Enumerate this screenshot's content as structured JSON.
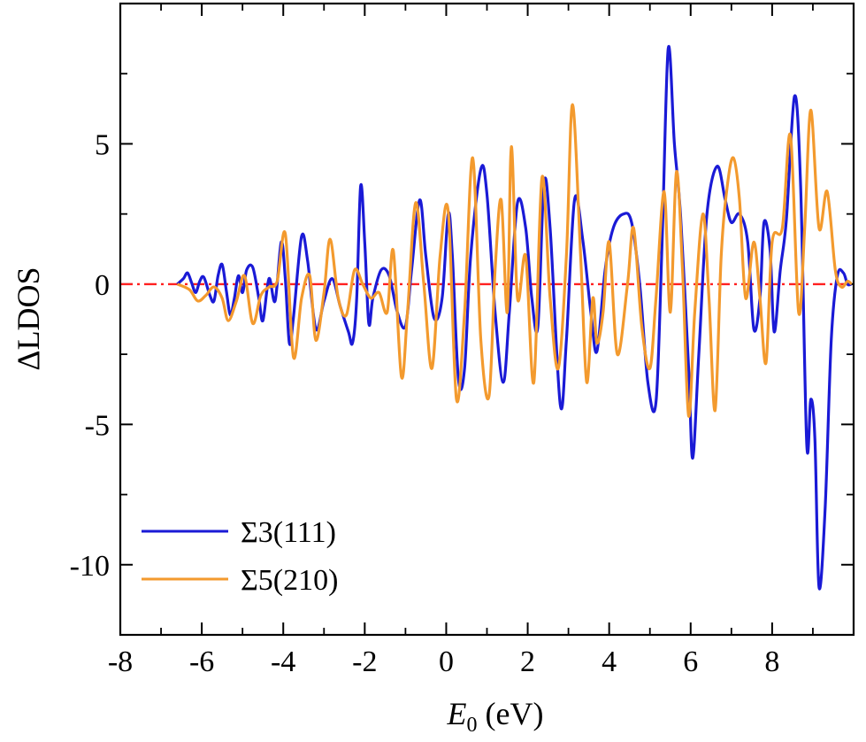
{
  "chart_data": {
    "type": "line",
    "title": "",
    "xlabel": {
      "main": "E",
      "sub": "0",
      "rest": " (eV)"
    },
    "ylabel": "ΔLDOS",
    "xlim": [
      -8,
      10
    ],
    "ylim": [
      -12.5,
      10
    ],
    "x_ticks": [
      -8,
      -6,
      -4,
      -2,
      0,
      2,
      4,
      6,
      8
    ],
    "x_tick_labels": [
      "-8",
      "-6",
      "-4",
      "-2",
      "0",
      "2",
      "4",
      "6",
      "8"
    ],
    "y_ticks": [
      -10,
      -5,
      0,
      5
    ],
    "y_tick_labels": [
      "-10",
      "-5",
      "0",
      "5"
    ],
    "x_minor_step": 1,
    "y_minor_step": 2.5,
    "legend_position": "bottom-left",
    "zero_line": {
      "y": 0,
      "color": "#ff2020",
      "style": "dash-dot"
    },
    "series": [
      {
        "name": "Σ3(111)",
        "color": "#1a1ad6",
        "points": [
          [
            -6.6,
            0
          ],
          [
            -6.45,
            0.2
          ],
          [
            -6.35,
            0.4
          ],
          [
            -6.25,
            0.05
          ],
          [
            -6.15,
            -0.3
          ],
          [
            -6.05,
            0.1
          ],
          [
            -5.95,
            0.25
          ],
          [
            -5.8,
            -0.4
          ],
          [
            -5.7,
            -0.6
          ],
          [
            -5.6,
            0.3
          ],
          [
            -5.5,
            0.7
          ],
          [
            -5.4,
            -0.2
          ],
          [
            -5.3,
            -1.1
          ],
          [
            -5.2,
            -0.5
          ],
          [
            -5.1,
            0.3
          ],
          [
            -5.0,
            -0.3
          ],
          [
            -4.9,
            0.5
          ],
          [
            -4.75,
            0.6
          ],
          [
            -4.6,
            -0.5
          ],
          [
            -4.5,
            -1.3
          ],
          [
            -4.35,
            0.2
          ],
          [
            -4.2,
            -0.6
          ],
          [
            -4.05,
            1.5
          ],
          [
            -3.95,
            0.2
          ],
          [
            -3.85,
            -2.1
          ],
          [
            -3.75,
            -1.2
          ],
          [
            -3.55,
            1.7
          ],
          [
            -3.4,
            0.8
          ],
          [
            -3.2,
            -1.6
          ],
          [
            -3.0,
            -0.6
          ],
          [
            -2.8,
            0.2
          ],
          [
            -2.6,
            -0.8
          ],
          [
            -2.4,
            -1.7
          ],
          [
            -2.3,
            -2.1
          ],
          [
            -2.2,
            -0.6
          ],
          [
            -2.1,
            3.5
          ],
          [
            -2.0,
            1.5
          ],
          [
            -1.9,
            -1.4
          ],
          [
            -1.8,
            -0.5
          ],
          [
            -1.6,
            0.5
          ],
          [
            -1.4,
            0.3
          ],
          [
            -1.2,
            -1.0
          ],
          [
            -1.0,
            -1.5
          ],
          [
            -0.85,
            0.5
          ],
          [
            -0.65,
            3.0
          ],
          [
            -0.5,
            1.0
          ],
          [
            -0.3,
            -1.2
          ],
          [
            -0.1,
            -0.5
          ],
          [
            0.05,
            2.5
          ],
          [
            0.15,
            1.0
          ],
          [
            0.3,
            -3.4
          ],
          [
            0.45,
            -3.0
          ],
          [
            0.6,
            1.0
          ],
          [
            0.85,
            4.1
          ],
          [
            1.0,
            3.2
          ],
          [
            1.2,
            -1.0
          ],
          [
            1.4,
            -3.5
          ],
          [
            1.55,
            -1.0
          ],
          [
            1.75,
            2.9
          ],
          [
            1.95,
            2.0
          ],
          [
            2.1,
            -0.5
          ],
          [
            2.25,
            -1.5
          ],
          [
            2.4,
            3.6
          ],
          [
            2.55,
            2.0
          ],
          [
            2.8,
            -4.3
          ],
          [
            2.95,
            -2.0
          ],
          [
            3.15,
            3.0
          ],
          [
            3.35,
            1.6
          ],
          [
            3.55,
            -1.0
          ],
          [
            3.7,
            -2.4
          ],
          [
            3.9,
            0.5
          ],
          [
            4.1,
            2.0
          ],
          [
            4.35,
            2.5
          ],
          [
            4.55,
            2.2
          ],
          [
            4.75,
            0.0
          ],
          [
            4.95,
            -3.5
          ],
          [
            5.15,
            -4.2
          ],
          [
            5.3,
            1.5
          ],
          [
            5.45,
            8.4
          ],
          [
            5.6,
            5.0
          ],
          [
            5.75,
            2.5
          ],
          [
            5.95,
            -3.0
          ],
          [
            6.05,
            -6.2
          ],
          [
            6.2,
            -2.5
          ],
          [
            6.4,
            2.5
          ],
          [
            6.65,
            4.2
          ],
          [
            6.85,
            3.0
          ],
          [
            7.0,
            2.2
          ],
          [
            7.2,
            2.5
          ],
          [
            7.4,
            1.5
          ],
          [
            7.55,
            -1.6
          ],
          [
            7.7,
            -0.5
          ],
          [
            7.8,
            2.2
          ],
          [
            7.95,
            1.2
          ],
          [
            8.05,
            -1.7
          ],
          [
            8.2,
            0.5
          ],
          [
            8.35,
            2.3
          ],
          [
            8.55,
            6.7
          ],
          [
            8.7,
            3.5
          ],
          [
            8.85,
            -5.7
          ],
          [
            8.95,
            -4.1
          ],
          [
            9.05,
            -5.5
          ],
          [
            9.15,
            -10.8
          ],
          [
            9.3,
            -8.0
          ],
          [
            9.45,
            -2.0
          ],
          [
            9.6,
            0.3
          ],
          [
            9.75,
            0.4
          ],
          [
            9.85,
            0.0
          ],
          [
            9.95,
            0.0
          ]
        ]
      },
      {
        "name": "Σ5(210)",
        "color": "#f39a2e",
        "points": [
          [
            -6.6,
            0
          ],
          [
            -6.3,
            -0.2
          ],
          [
            -6.1,
            -0.6
          ],
          [
            -5.9,
            -0.4
          ],
          [
            -5.7,
            -0.1
          ],
          [
            -5.5,
            -0.5
          ],
          [
            -5.35,
            -1.3
          ],
          [
            -5.15,
            -0.6
          ],
          [
            -4.95,
            0.3
          ],
          [
            -4.75,
            -1.4
          ],
          [
            -4.55,
            -0.4
          ],
          [
            -4.35,
            -0.1
          ],
          [
            -4.15,
            0.1
          ],
          [
            -3.95,
            1.8
          ],
          [
            -3.75,
            -2.6
          ],
          [
            -3.55,
            -0.5
          ],
          [
            -3.35,
            0.3
          ],
          [
            -3.2,
            -2.0
          ],
          [
            -3.0,
            -0.3
          ],
          [
            -2.85,
            1.6
          ],
          [
            -2.65,
            -0.5
          ],
          [
            -2.45,
            -1.1
          ],
          [
            -2.25,
            0.5
          ],
          [
            -2.05,
            0.0
          ],
          [
            -1.85,
            -0.5
          ],
          [
            -1.65,
            -0.3
          ],
          [
            -1.45,
            -1.0
          ],
          [
            -1.3,
            1.2
          ],
          [
            -1.1,
            -3.3
          ],
          [
            -0.95,
            -1.0
          ],
          [
            -0.75,
            2.9
          ],
          [
            -0.55,
            0.0
          ],
          [
            -0.35,
            -3.0
          ],
          [
            -0.15,
            1.0
          ],
          [
            0.05,
            2.6
          ],
          [
            0.25,
            -4.1
          ],
          [
            0.45,
            -1.0
          ],
          [
            0.65,
            4.5
          ],
          [
            0.85,
            -2.0
          ],
          [
            1.05,
            -4.0
          ],
          [
            1.2,
            0.5
          ],
          [
            1.35,
            3.0
          ],
          [
            1.5,
            -1.0
          ],
          [
            1.6,
            4.9
          ],
          [
            1.75,
            -0.5
          ],
          [
            1.95,
            1.0
          ],
          [
            2.15,
            -3.5
          ],
          [
            2.35,
            3.8
          ],
          [
            2.55,
            -0.5
          ],
          [
            2.75,
            -3.0
          ],
          [
            2.95,
            1.0
          ],
          [
            3.1,
            6.4
          ],
          [
            3.3,
            1.0
          ],
          [
            3.45,
            -3.5
          ],
          [
            3.6,
            -0.5
          ],
          [
            3.7,
            -2.1
          ],
          [
            3.85,
            -1.0
          ],
          [
            4.0,
            1.5
          ],
          [
            4.2,
            -2.5
          ],
          [
            4.45,
            0.0
          ],
          [
            4.6,
            2.0
          ],
          [
            4.8,
            -1.5
          ],
          [
            5.0,
            -3.0
          ],
          [
            5.15,
            -0.5
          ],
          [
            5.35,
            3.3
          ],
          [
            5.5,
            -1.0
          ],
          [
            5.65,
            4.0
          ],
          [
            5.8,
            0.5
          ],
          [
            5.95,
            -4.7
          ],
          [
            6.1,
            -1.0
          ],
          [
            6.3,
            2.5
          ],
          [
            6.45,
            -0.5
          ],
          [
            6.6,
            -4.5
          ],
          [
            6.75,
            1.0
          ],
          [
            6.9,
            3.5
          ],
          [
            7.05,
            4.5
          ],
          [
            7.2,
            3.0
          ],
          [
            7.35,
            -0.5
          ],
          [
            7.55,
            1.5
          ],
          [
            7.7,
            -0.5
          ],
          [
            7.85,
            -2.8
          ],
          [
            8.0,
            1.5
          ],
          [
            8.25,
            2.0
          ],
          [
            8.45,
            5.3
          ],
          [
            8.65,
            -1.0
          ],
          [
            8.8,
            2.0
          ],
          [
            8.95,
            6.2
          ],
          [
            9.15,
            2.0
          ],
          [
            9.35,
            3.3
          ],
          [
            9.55,
            0.5
          ],
          [
            9.7,
            -0.1
          ],
          [
            9.85,
            0.1
          ],
          [
            9.95,
            0.0
          ]
        ]
      }
    ]
  }
}
